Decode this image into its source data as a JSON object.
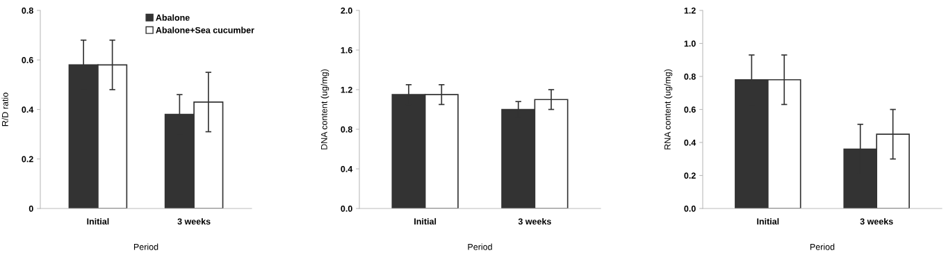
{
  "chart_data": [
    {
      "type": "bar",
      "categories": [
        "Initial",
        "3 weeks"
      ],
      "xlabel": "Period",
      "ylabel": "R/D ratio",
      "ylim": [
        0,
        0.8
      ],
      "yticks": [
        0,
        0.2,
        0.4,
        0.6,
        0.8
      ],
      "legend": "top right",
      "grid": false,
      "series": [
        {
          "name": "Abalone",
          "color": "#333333",
          "values": [
            0.58,
            0.38
          ],
          "errors": [
            0.1,
            0.08
          ]
        },
        {
          "name": "Abalone+Sea cucumber",
          "color": "#ffffff",
          "values": [
            0.58,
            0.43
          ],
          "errors": [
            0.1,
            0.12
          ]
        }
      ]
    },
    {
      "type": "bar",
      "categories": [
        "Initial",
        "3 weeks"
      ],
      "xlabel": "Period",
      "ylabel": "DNA content (ug/mg)",
      "ylim": [
        0,
        2.0
      ],
      "yticks": [
        {
          "value": 0,
          "label": "0.0"
        },
        0.4,
        0.8,
        1.2,
        1.6,
        {
          "value": 2,
          "label": "2.0"
        }
      ],
      "legend": false,
      "grid": false,
      "series": [
        {
          "color": "#333333",
          "values": [
            1.15,
            1.0
          ],
          "errors": [
            0.1,
            0.08
          ]
        },
        {
          "color": "#ffffff",
          "values": [
            1.15,
            1.1
          ],
          "errors": [
            0.1,
            0.1
          ]
        }
      ]
    },
    {
      "type": "bar",
      "categories": [
        "Initial",
        "3 weeks"
      ],
      "xlabel": "Period",
      "ylabel": "RNA content (ug/mg)",
      "ylim": [
        0,
        1.2
      ],
      "yticks": [
        {
          "value": 0,
          "label": "0.0"
        },
        0.2,
        0.4,
        0.6,
        0.8,
        {
          "value": 1,
          "label": "1.0"
        },
        1.2
      ],
      "legend": false,
      "grid": false,
      "series": [
        {
          "color": "#333333",
          "values": [
            0.78,
            0.36
          ],
          "errors": [
            0.15,
            0.15
          ]
        },
        {
          "color": "#ffffff",
          "values": [
            0.78,
            0.45
          ],
          "errors": [
            0.15,
            0.15
          ]
        }
      ]
    }
  ]
}
